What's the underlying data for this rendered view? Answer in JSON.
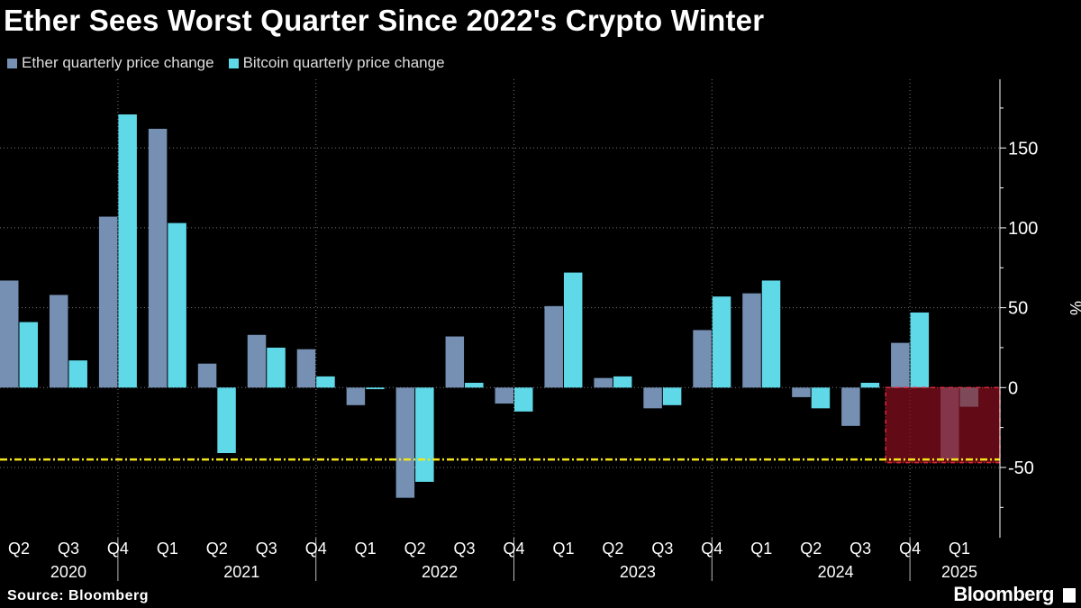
{
  "chart_data": {
    "type": "bar",
    "title": "Ether Sees Worst Quarter Since 2022's Crypto Winter",
    "categories": [
      "Q2 2020",
      "Q3 2020",
      "Q4 2020",
      "Q1 2021",
      "Q2 2021",
      "Q3 2021",
      "Q4 2021",
      "Q1 2022",
      "Q2 2022",
      "Q3 2022",
      "Q4 2022",
      "Q1 2023",
      "Q2 2023",
      "Q3 2023",
      "Q4 2023",
      "Q1 2024",
      "Q2 2024",
      "Q3 2024",
      "Q4 2024",
      "Q1 2025"
    ],
    "quarter_labels": [
      "Q2",
      "Q3",
      "Q4",
      "Q1",
      "Q2",
      "Q3",
      "Q4",
      "Q1",
      "Q2",
      "Q3",
      "Q4",
      "Q1",
      "Q2",
      "Q3",
      "Q4",
      "Q1",
      "Q2",
      "Q3",
      "Q4",
      "Q1"
    ],
    "year_labels": [
      {
        "label": "2020",
        "from": 0,
        "to": 2
      },
      {
        "label": "2021",
        "from": 3,
        "to": 6
      },
      {
        "label": "2022",
        "from": 7,
        "to": 10
      },
      {
        "label": "2023",
        "from": 11,
        "to": 14
      },
      {
        "label": "2024",
        "from": 15,
        "to": 18
      },
      {
        "label": "2025",
        "from": 19,
        "to": 19
      }
    ],
    "series": [
      {
        "name": "Ether quarterly price change",
        "color": "#7590b3",
        "values": [
          67,
          58,
          107,
          162,
          15,
          33,
          24,
          -11,
          -69,
          32,
          -10,
          51,
          6,
          -13,
          36,
          59,
          -6,
          -24,
          28,
          -45
        ]
      },
      {
        "name": "Bitcoin quarterly price change",
        "color": "#5fd8e8",
        "values": [
          41,
          17,
          171,
          103,
          -41,
          25,
          7,
          -1,
          -59,
          3,
          -15,
          72,
          7,
          -11,
          57,
          67,
          -13,
          3,
          47,
          -12
        ]
      }
    ],
    "ylabel": "%",
    "ylim": [
      -94,
      193
    ],
    "yticks": [
      -50,
      0,
      50,
      100,
      150
    ],
    "grid": true,
    "legend": "top-left",
    "reference_line": {
      "value": -45,
      "color": "#f5e61a"
    },
    "highlight": {
      "from_category": "Q4 2024",
      "to_category": "Q1 2025",
      "range": [
        -47,
        0
      ],
      "color": "#8b0e1e"
    }
  },
  "source": "Source: Bloomberg",
  "brand": "Bloomberg"
}
